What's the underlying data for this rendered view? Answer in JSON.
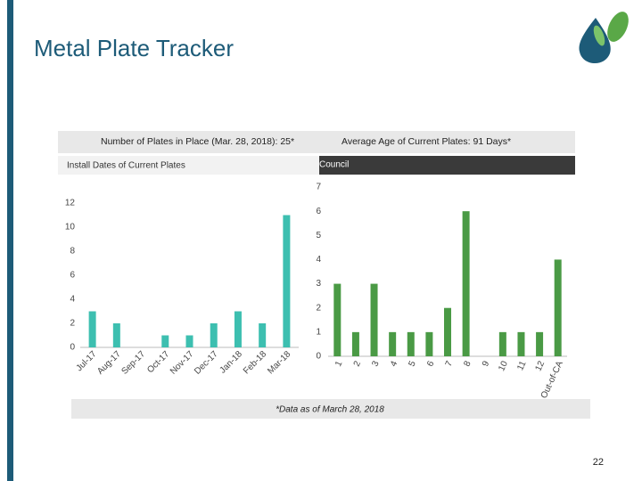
{
  "slide": {
    "title": "Metal Plate Tracker",
    "page_number": "22",
    "footnote": "*Data as of March 28, 2018",
    "info_bar": [
      "Number of Plates in Place (Mar. 28, 2018): 25*",
      "Average Age of Current Plates: 91 Days*"
    ]
  },
  "chart_data": [
    {
      "type": "bar",
      "title": "Install Dates of Current Plates",
      "categories": [
        "Jul-17",
        "Aug-17",
        "Sep-17",
        "Oct-17",
        "Nov-17",
        "Dec-17",
        "Jan-18",
        "Feb-18",
        "Mar-18"
      ],
      "values": [
        3,
        2,
        0,
        1,
        1,
        2,
        3,
        2,
        11
      ],
      "color": "#3dbfb0",
      "ylim": [
        0,
        12
      ],
      "yticks": [
        0,
        2,
        4,
        6,
        8,
        10,
        12
      ]
    },
    {
      "type": "bar",
      "title": "Council",
      "categories": [
        "1",
        "2",
        "3",
        "4",
        "5",
        "6",
        "7",
        "8",
        "9",
        "10",
        "11",
        "12",
        "Out-of-CA"
      ],
      "values": [
        3,
        1,
        3,
        1,
        1,
        1,
        2,
        6,
        0,
        1,
        1,
        1,
        4
      ],
      "color": "#4a9a45",
      "ylim": [
        0,
        7
      ],
      "yticks": [
        0,
        1,
        2,
        3,
        4,
        5,
        6,
        7
      ]
    }
  ]
}
